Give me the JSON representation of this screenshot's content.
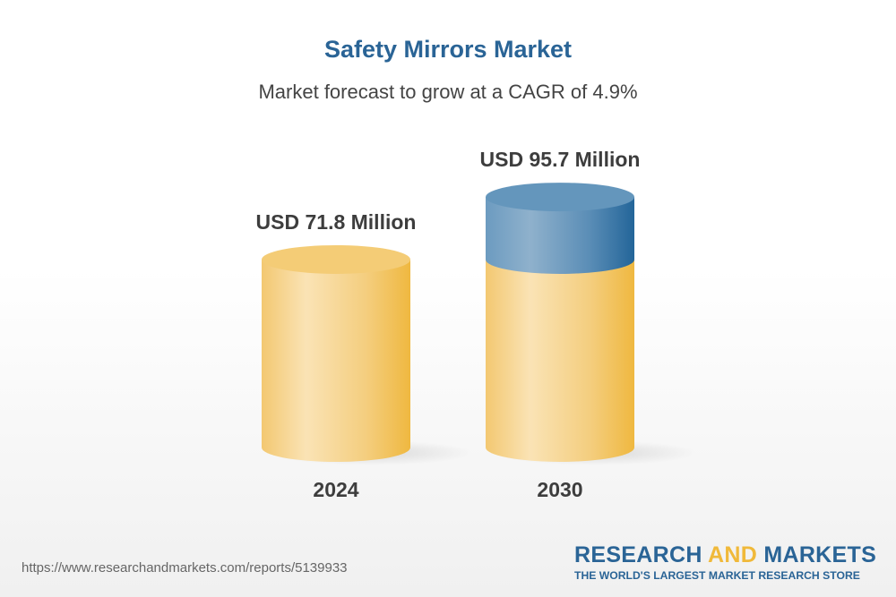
{
  "title": "Safety Mirrors Market",
  "subtitle": "Market forecast to grow at a CAGR of 4.9%",
  "chart_data": {
    "type": "bar",
    "style": "3d-cylinder",
    "categories": [
      "2024",
      "2030"
    ],
    "values": [
      71.8,
      95.7
    ],
    "data_labels": [
      "USD 71.8 Million",
      "USD 95.7 Million"
    ],
    "unit": "USD Million",
    "cagr": "4.9%",
    "colors": {
      "base": "#f2c05a",
      "growth": "#2f6c9e"
    }
  },
  "footer": {
    "url": "https://www.researchandmarkets.com/reports/5139933",
    "logo_part1": "RESEARCH ",
    "logo_part2": "AND",
    "logo_part3": " MARKETS",
    "tagline": "THE WORLD'S LARGEST MARKET RESEARCH STORE"
  }
}
